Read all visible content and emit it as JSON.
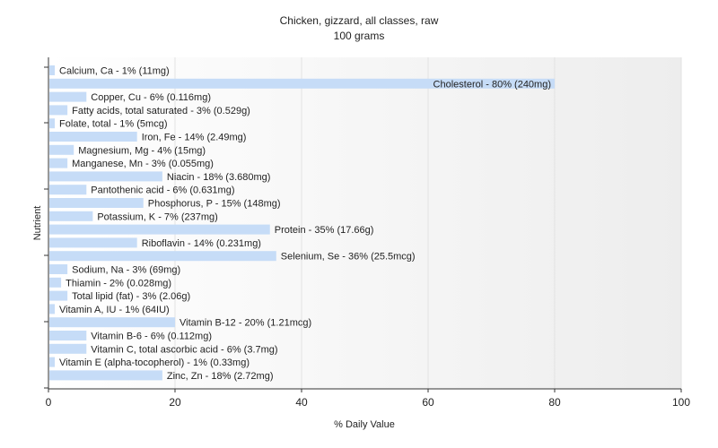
{
  "chart_data": {
    "type": "bar",
    "orientation": "horizontal",
    "title": "Chicken, gizzard, all classes, raw",
    "subtitle": "100 grams",
    "xlabel": "% Daily Value",
    "ylabel": "Nutrient",
    "xlim": [
      0,
      100
    ],
    "xticks": [
      0,
      20,
      40,
      60,
      80,
      100
    ],
    "grid": true,
    "bar_color": "#c6dcf7",
    "categories": [
      "Calcium, Ca",
      "Cholesterol",
      "Copper, Cu",
      "Fatty acids, total saturated",
      "Folate, total",
      "Iron, Fe",
      "Magnesium, Mg",
      "Manganese, Mn",
      "Niacin",
      "Pantothenic acid",
      "Phosphorus, P",
      "Potassium, K",
      "Protein",
      "Riboflavin",
      "Selenium, Se",
      "Sodium, Na",
      "Thiamin",
      "Total lipid (fat)",
      "Vitamin A, IU",
      "Vitamin B-12",
      "Vitamin B-6",
      "Vitamin C, total ascorbic acid",
      "Vitamin E (alpha-tocopherol)",
      "Zinc, Zn"
    ],
    "values": [
      1,
      80,
      6,
      3,
      1,
      14,
      4,
      3,
      18,
      6,
      15,
      7,
      35,
      14,
      36,
      3,
      2,
      3,
      1,
      20,
      6,
      6,
      1,
      18
    ],
    "labels": [
      "Calcium, Ca - 1% (11mg)",
      "Cholesterol - 80% (240mg)",
      "Copper, Cu - 6% (0.116mg)",
      "Fatty acids, total saturated - 3% (0.529g)",
      "Folate, total - 1% (5mcg)",
      "Iron, Fe - 14% (2.49mg)",
      "Magnesium, Mg - 4% (15mg)",
      "Manganese, Mn - 3% (0.055mg)",
      "Niacin - 18% (3.680mg)",
      "Pantothenic acid - 6% (0.631mg)",
      "Phosphorus, P - 15% (148mg)",
      "Potassium, K - 7% (237mg)",
      "Protein - 35% (17.66g)",
      "Riboflavin - 14% (0.231mg)",
      "Selenium, Se - 36% (25.5mcg)",
      "Sodium, Na - 3% (69mg)",
      "Thiamin - 2% (0.028mg)",
      "Total lipid (fat) - 3% (2.06g)",
      "Vitamin A, IU - 1% (64IU)",
      "Vitamin B-12 - 20% (1.21mcg)",
      "Vitamin B-6 - 6% (0.112mg)",
      "Vitamin C, total ascorbic acid - 6% (3.7mg)",
      "Vitamin E (alpha-tocopherol) - 1% (0.33mg)",
      "Zinc, Zn - 18% (2.72mg)"
    ]
  }
}
